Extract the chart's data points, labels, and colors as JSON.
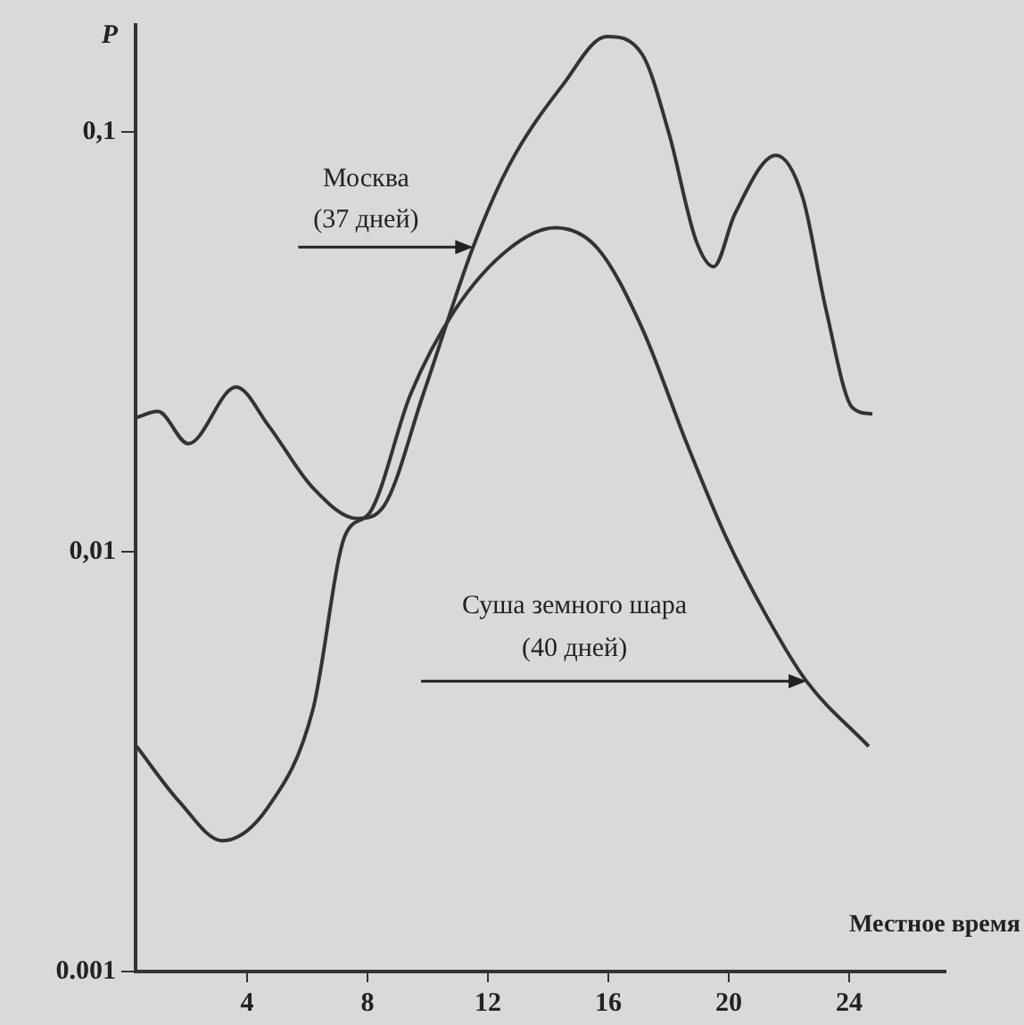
{
  "chart_data": {
    "type": "line",
    "xlabel": "Местное время",
    "ylabel": "P",
    "log": "y",
    "grid": false,
    "legend": false,
    "marker": "none",
    "line_style": "solid",
    "xlim": [
      0.3,
      27.2
    ],
    "xticks": [
      4,
      8,
      12,
      16,
      20,
      24
    ],
    "ylim": [
      0.001,
      0.18
    ],
    "yticks": [
      {
        "value": 0.1,
        "label": "0,1"
      },
      {
        "value": 0.01,
        "label": "0,01"
      },
      {
        "value": 0.001,
        "label": "0.001"
      }
    ],
    "series": [
      {
        "color": "#333333",
        "x": [
          0.33,
          1.04,
          2.05,
          3.64,
          4.71,
          6.19,
          7.67,
          8.56,
          9.86,
          11.51,
          12.7,
          14.47,
          15.95,
          17.13,
          18.02,
          18.91,
          19.5,
          20.21,
          21.57,
          22.46,
          23.23,
          24.12,
          24.77
        ],
        "values": [
          0.0209,
          0.0216,
          0.0181,
          0.0247,
          0.02,
          0.0142,
          0.012,
          0.0129,
          0.0238,
          0.0532,
          0.0832,
          0.129,
          0.169,
          0.153,
          0.099,
          0.0553,
          0.0478,
          0.064,
          0.088,
          0.0698,
          0.0378,
          0.022,
          0.0213
        ]
      },
      {
        "color": "#333333",
        "x": [
          0.33,
          1.75,
          3.18,
          4.71,
          6.19,
          7.25,
          8.08,
          9.44,
          10.92,
          12.7,
          14.24,
          15.66,
          17.13,
          18.61,
          19.92,
          21.28,
          22.58,
          24.65
        ],
        "values": [
          0.00344,
          0.00254,
          0.00205,
          0.00247,
          0.00421,
          0.0109,
          0.0124,
          0.0238,
          0.0378,
          0.0527,
          0.0592,
          0.0527,
          0.034,
          0.0181,
          0.0108,
          0.00698,
          0.00492,
          0.00344
        ]
      }
    ],
    "annotations": [
      {
        "text": "Москва\n(37 дней)",
        "x": 11.51,
        "y": 0.0532
      },
      "Суша земного шара\n(40 дней)"
    ]
  }
}
